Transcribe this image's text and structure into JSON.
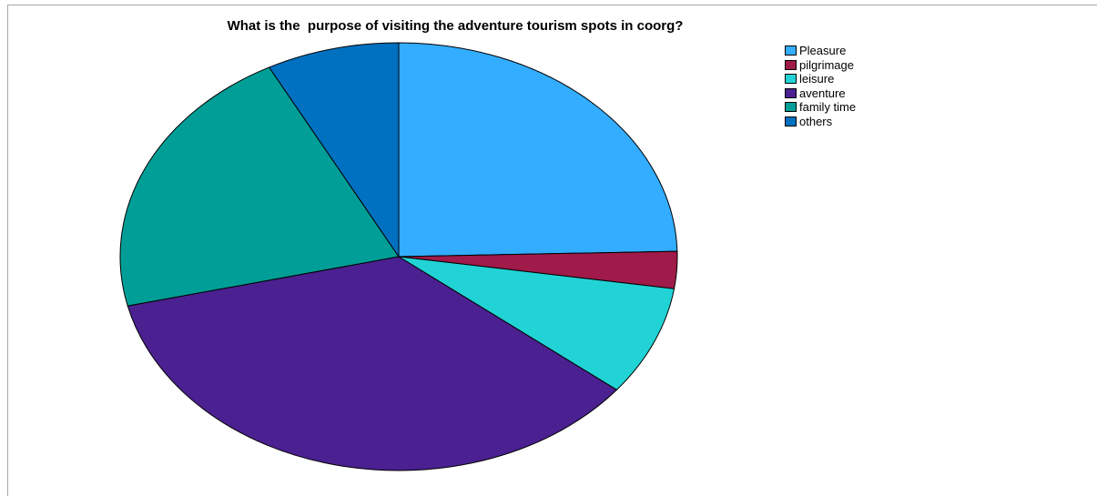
{
  "chart_data": {
    "type": "pie",
    "title": "What is the  purpose of visiting the adventure tourism spots in coorg?",
    "categories": [
      "Pleasure",
      "pilgrimage",
      "leisure",
      "aventure",
      "family time",
      "others"
    ],
    "values": [
      24.6,
      2.8,
      8.3,
      35.6,
      21.0,
      7.7
    ],
    "colors": [
      "#33adff",
      "#a01a4a",
      "#22d3d6",
      "#4b2090",
      "#009e96",
      "#0070c0"
    ],
    "legend_position": "top-right"
  }
}
